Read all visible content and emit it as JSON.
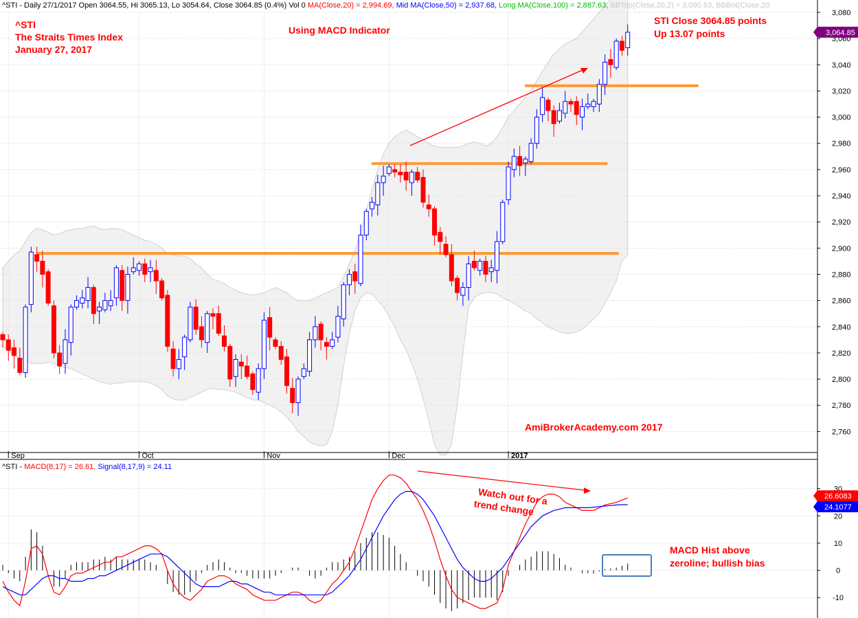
{
  "header": {
    "segments": [
      {
        "text": "^STI - Daily 27/1/2017 Open 3064.55, Hi 3065.13, Lo 3054.64, Close 3064.85 (0.4%) Vol 0 ",
        "color": "#000000"
      },
      {
        "text": "MA(Close,20) = 2,994.69, ",
        "color": "#ff0000"
      },
      {
        "text": "Mid MA(Close,50) = 2,937.68, ",
        "color": "#0000ff"
      },
      {
        "text": "Long MA(Close,100) = 2,887.63, ",
        "color": "#00bb00"
      },
      {
        "text": "BBTop(Close,20,2) = 3,090.63, ",
        "color": "#c8c8c8"
      },
      {
        "text": "BBBot(Close,20",
        "color": "#c8c8c8"
      }
    ]
  },
  "annotations": {
    "ticker": "^STI",
    "index_name": "The Straits Times Index",
    "date": "January 27, 2017",
    "indicator_note": "Using MACD Indicator",
    "close_note": "STI Close 3064.85 points",
    "change_note": "Up 13.07 points",
    "watermark": "AmiBrokerAcademy.com  2017",
    "trend_note_line1": "Watch out for a",
    "trend_note_line2": "trend change",
    "hist_note_line1": "MACD Hist above",
    "hist_note_line2": "zeroline; bullish bias"
  },
  "macd_header": {
    "segments": [
      {
        "text": "^STI - ",
        "color": "#000000"
      },
      {
        "text": "MACD(8,17) = 26.61, ",
        "color": "#ff0000"
      },
      {
        "text": "Signal(8,17,9) = 24.11",
        "color": "#0000ff"
      }
    ]
  },
  "colors": {
    "up": "#0000ff",
    "down": "#ff0000",
    "macd": "#ff0000",
    "signal": "#0000ff",
    "annotation": "#ff0000",
    "level_line": "#ff9933",
    "band_fill": "#e6e6e6",
    "price_badge": "#800080",
    "macd_badge": "#ff0000",
    "signal_badge": "#0000ff"
  },
  "chart_data": [
    {
      "type": "candlestick",
      "title": "^STI - Daily 27/1/2017",
      "x_labels": [
        {
          "label": "Sep",
          "index": 1
        },
        {
          "label": "Oct",
          "index": 24
        },
        {
          "label": "Nov",
          "index": 46
        },
        {
          "label": "Dec",
          "index": 68
        },
        {
          "label": "2017",
          "index": 89
        }
      ],
      "ylim": [
        2745,
        3080
      ],
      "yticks": [
        2760,
        2780,
        2800,
        2820,
        2840,
        2860,
        2880,
        2900,
        2920,
        2940,
        2960,
        2980,
        3000,
        3020,
        3040,
        3060,
        3080
      ],
      "close_marker": {
        "value": 3064.85,
        "label": "3,064.85"
      },
      "closes": [
        2830,
        2822,
        2818,
        2805,
        2855,
        2897,
        2890,
        2880,
        2858,
        2820,
        2810,
        2830,
        2855,
        2860,
        2862,
        2870,
        2850,
        2855,
        2860,
        2860,
        2885,
        2860,
        2880,
        2885,
        2888,
        2880,
        2885,
        2875,
        2862,
        2825,
        2808,
        2815,
        2832,
        2855,
        2838,
        2830,
        2850,
        2848,
        2835,
        2825,
        2800,
        2815,
        2810,
        2802,
        2792,
        2808,
        2845,
        2832,
        2825,
        2815,
        2795,
        2782,
        2800,
        2808,
        2830,
        2840,
        2830,
        2825,
        2830,
        2848,
        2872,
        2880,
        2875,
        2910,
        2928,
        2935,
        2950,
        2955,
        2962,
        2958,
        2956,
        2952,
        2958,
        2952,
        2935,
        2930,
        2910,
        2905,
        2895,
        2875,
        2866,
        2870,
        2888,
        2885,
        2890,
        2880,
        2885,
        2905,
        2935,
        2962,
        2970,
        2963,
        2968,
        2980,
        3000,
        3015,
        3005,
        2995,
        3005,
        3012,
        3010,
        3002,
        3008,
        3010,
        3012,
        3025,
        3042,
        3040,
        3058,
        3051,
        3064.85
      ],
      "band_upper": [
        2885,
        2890,
        2895,
        2898,
        2905,
        2912,
        2915,
        2914,
        2912,
        2910,
        2911,
        2913,
        2914,
        2915,
        2915,
        2916,
        2917,
        2915,
        2914,
        2915,
        2915,
        2914,
        2912,
        2910,
        2908,
        2906,
        2905,
        2903,
        2900,
        2896,
        2895,
        2894,
        2894,
        2892,
        2888,
        2885,
        2880,
        2876,
        2875,
        2873,
        2870,
        2868,
        2866,
        2865,
        2864,
        2865,
        2866,
        2868,
        2870,
        2868,
        2866,
        2862,
        2860,
        2860,
        2860,
        2862,
        2864,
        2866,
        2868,
        2870,
        2878,
        2888,
        2898,
        2912,
        2928,
        2945,
        2960,
        2972,
        2980,
        2985,
        2988,
        2990,
        2988,
        2985,
        2983,
        2980,
        2978,
        2977,
        2977,
        2977,
        2977,
        2978,
        2980,
        2981,
        2980,
        2978,
        2980,
        2985,
        2992,
        3000,
        3005,
        3010,
        3015,
        3020,
        3028,
        3035,
        3042,
        3048,
        3052,
        3056,
        3058,
        3060,
        3065,
        3070,
        3075,
        3080,
        3085,
        3090,
        3092,
        3092,
        3090
      ],
      "band_lower": [
        2825,
        2822,
        2818,
        2816,
        2814,
        2812,
        2812,
        2812,
        2813,
        2812,
        2810,
        2809,
        2808,
        2806,
        2804,
        2802,
        2800,
        2798,
        2797,
        2796,
        2797,
        2797,
        2798,
        2798,
        2798,
        2798,
        2797,
        2795,
        2792,
        2787,
        2785,
        2784,
        2784,
        2786,
        2788,
        2790,
        2792,
        2793,
        2792,
        2792,
        2791,
        2790,
        2788,
        2786,
        2784,
        2784,
        2782,
        2780,
        2778,
        2775,
        2771,
        2766,
        2760,
        2756,
        2752,
        2750,
        2749,
        2750,
        2760,
        2780,
        2810,
        2835,
        2852,
        2862,
        2866,
        2865,
        2860,
        2855,
        2848,
        2840,
        2830,
        2822,
        2812,
        2800,
        2785,
        2768,
        2750,
        2742,
        2742,
        2750,
        2780,
        2820,
        2855,
        2862,
        2865,
        2866,
        2866,
        2865,
        2862,
        2860,
        2858,
        2855,
        2852,
        2850,
        2846,
        2843,
        2840,
        2838,
        2836,
        2835,
        2835,
        2836,
        2838,
        2842,
        2846,
        2850,
        2858,
        2866,
        2875,
        2890,
        2895
      ]
    },
    {
      "type": "line",
      "title": "^STI - MACD(8,17) = 26.61, Signal(8,17,9) = 24.11",
      "ylim": [
        -17,
        40
      ],
      "yticks": [
        -10,
        0,
        10,
        20,
        30
      ],
      "series": [
        {
          "name": "MACD(8,17)",
          "values": [
            -4,
            -8,
            -11,
            -13,
            -4,
            8,
            9,
            6,
            -2,
            -8,
            -9,
            -6,
            -2,
            -1,
            -1,
            0,
            1,
            2,
            3,
            3,
            5,
            5,
            6,
            7,
            8,
            9,
            9,
            8,
            6,
            0,
            -5,
            -8,
            -10,
            -11,
            -9,
            -7,
            -4,
            -3,
            -2,
            -2,
            -3,
            -5,
            -6,
            -7,
            -9,
            -10,
            -11,
            -11,
            -11,
            -10,
            -9,
            -8,
            -8,
            -9,
            -11,
            -12,
            -11,
            -8,
            -5,
            -3,
            0,
            3,
            8,
            14,
            20,
            26,
            30,
            33,
            35,
            35,
            34,
            32,
            29,
            26,
            22,
            17,
            11,
            4,
            -2,
            -7,
            -10,
            -11,
            -12,
            -13,
            -14,
            -14,
            -13,
            -12,
            -7,
            2,
            7,
            12,
            17,
            21,
            25,
            27,
            28,
            28,
            27,
            25,
            24,
            23,
            22,
            22,
            22,
            23,
            24,
            24.5,
            25,
            25.8,
            26.61
          ],
          "color": "#ff0000"
        },
        {
          "name": "Signal(8,17,9)",
          "values": [
            -6,
            -7,
            -8,
            -9,
            -9,
            -7,
            -5,
            -3,
            -2,
            -2,
            -3,
            -3,
            -4,
            -4,
            -4,
            -3,
            -3,
            -2,
            -2,
            -1,
            0,
            1,
            2,
            3,
            4,
            5,
            6,
            6,
            6,
            5,
            3,
            1,
            -1,
            -3,
            -5,
            -6,
            -6,
            -6,
            -6,
            -5,
            -4,
            -4,
            -5,
            -5,
            -6,
            -7,
            -8,
            -8,
            -9,
            -9,
            -9,
            -9,
            -9,
            -9,
            -9,
            -9,
            -9,
            -9,
            -8,
            -6,
            -4,
            -2,
            1,
            4,
            8,
            12,
            16,
            20,
            23,
            26,
            28,
            29,
            29,
            28,
            26,
            23,
            20,
            16,
            12,
            8,
            4,
            1,
            -1,
            -3,
            -4,
            -4,
            -3,
            -1,
            1,
            4,
            7,
            10,
            13,
            16,
            18,
            20,
            21,
            22,
            22.5,
            23,
            23,
            23,
            23,
            23,
            23.2,
            23.4,
            23.6,
            23.8,
            24,
            24.1,
            24.11
          ],
          "color": "#0000ff"
        }
      ],
      "macd_marker": {
        "value": 26.61,
        "label": "26.6083"
      },
      "signal_marker": {
        "value": 24.11,
        "label": "24.1077"
      }
    }
  ]
}
